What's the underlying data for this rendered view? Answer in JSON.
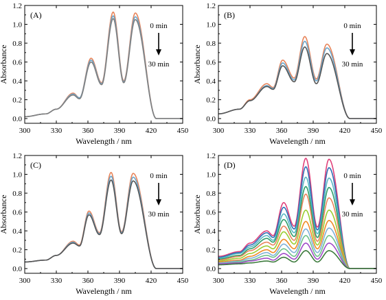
{
  "chart_data": [
    {
      "type": "line",
      "panel_label": "(A)",
      "xlabel": "Wavelength / nm",
      "ylabel": "Absorbance",
      "xlim": [
        300,
        450
      ],
      "ylim": [
        -0.05,
        1.2
      ],
      "xticks": [
        "300",
        "330",
        "360",
        "390",
        "420",
        "450"
      ],
      "yticks": [
        "0.0",
        "0.2",
        "0.4",
        "0.6",
        "0.8",
        "1.0",
        "1.2"
      ],
      "annotation": {
        "start": "0 min",
        "end": "30 min"
      },
      "peaks": [
        {
          "wavelength": 346,
          "absorbance": [
            0.27,
            0.25
          ]
        },
        {
          "wavelength": 363,
          "absorbance": [
            0.64,
            0.6
          ]
        },
        {
          "wavelength": 384,
          "absorbance": [
            1.13,
            1.06
          ]
        },
        {
          "wavelength": 405,
          "absorbance": [
            1.12,
            1.05
          ]
        }
      ],
      "series": [
        {
          "values": [
            0.02,
            0.05,
            0.1,
            0.27,
            0.22,
            0.64,
            0.38,
            1.13,
            0.4,
            1.12,
            0.0
          ]
        },
        {
          "values": [
            0.02,
            0.05,
            0.1,
            0.26,
            0.22,
            0.62,
            0.37,
            1.09,
            0.39,
            1.08,
            0.0
          ]
        },
        {
          "values": [
            0.02,
            0.05,
            0.1,
            0.25,
            0.21,
            0.6,
            0.36,
            1.06,
            0.38,
            1.05,
            0.0
          ]
        }
      ],
      "x": [
        300,
        320,
        330,
        346,
        352,
        363,
        373,
        384,
        394,
        405,
        425
      ],
      "colors": [
        "#e8845a",
        "#6aa4c9",
        "#7f7f7f"
      ],
      "grid": false
    },
    {
      "type": "line",
      "panel_label": "(B)",
      "xlabel": "Wavelength / nm",
      "ylabel": "Absorbance",
      "xlim": [
        300,
        450
      ],
      "ylim": [
        -0.05,
        1.2
      ],
      "xticks": [
        "300",
        "330",
        "360",
        "390",
        "420",
        "450"
      ],
      "yticks": [
        "0.0",
        "0.2",
        "0.4",
        "0.6",
        "0.8",
        "1.0",
        "1.2"
      ],
      "annotation": {
        "start": "0 min",
        "end": "30 min"
      },
      "series": [
        {
          "values": [
            0.05,
            0.1,
            0.2,
            0.37,
            0.33,
            0.62,
            0.43,
            0.87,
            0.42,
            0.79,
            0.0
          ]
        },
        {
          "values": [
            0.05,
            0.1,
            0.19,
            0.35,
            0.32,
            0.59,
            0.41,
            0.82,
            0.4,
            0.75,
            0.0
          ]
        },
        {
          "values": [
            0.05,
            0.1,
            0.19,
            0.34,
            0.31,
            0.56,
            0.39,
            0.76,
            0.37,
            0.69,
            0.0
          ]
        }
      ],
      "x": [
        300,
        320,
        330,
        346,
        352,
        361,
        372,
        382,
        393,
        403,
        425
      ],
      "colors": [
        "#e8845a",
        "#6aa4c9",
        "#555555"
      ],
      "grid": false
    },
    {
      "type": "line",
      "panel_label": "(C)",
      "xlabel": "Wavelength / nm",
      "ylabel": "Absorbance",
      "xlim": [
        300,
        450
      ],
      "ylim": [
        -0.05,
        1.2
      ],
      "xticks": [
        "300",
        "330",
        "360",
        "390",
        "420",
        "450"
      ],
      "yticks": [
        "0.0",
        "0.2",
        "0.4",
        "0.6",
        "0.8",
        "1.0",
        "1.2"
      ],
      "annotation": {
        "start": "0 min",
        "end": "30 min"
      },
      "series": [
        {
          "values": [
            0.07,
            0.09,
            0.14,
            0.29,
            0.25,
            0.61,
            0.38,
            1.02,
            0.39,
            1.01,
            0.0
          ]
        },
        {
          "values": [
            0.07,
            0.09,
            0.14,
            0.28,
            0.24,
            0.59,
            0.37,
            0.98,
            0.38,
            0.97,
            0.0
          ]
        },
        {
          "values": [
            0.07,
            0.09,
            0.14,
            0.27,
            0.24,
            0.57,
            0.36,
            0.94,
            0.37,
            0.93,
            0.0
          ]
        }
      ],
      "x": [
        300,
        320,
        330,
        346,
        352,
        361,
        371,
        382,
        392,
        403,
        425
      ],
      "colors": [
        "#e8845a",
        "#6aa4c9",
        "#555555"
      ],
      "grid": false
    },
    {
      "type": "line",
      "panel_label": "(D)",
      "xlabel": "Wavelength / nm",
      "ylabel": "Absorbance",
      "xlim": [
        300,
        450
      ],
      "ylim": [
        -0.05,
        1.2
      ],
      "xticks": [
        "300",
        "330",
        "360",
        "390",
        "420",
        "450"
      ],
      "yticks": [
        "0.0",
        "0.2",
        "0.4",
        "0.6",
        "0.8",
        "1.0",
        "1.2"
      ],
      "annotation": {
        "start": "0 min",
        "end": "30 min"
      },
      "series": [
        {
          "values": [
            0.13,
            0.18,
            0.27,
            0.4,
            0.35,
            0.7,
            0.45,
            1.17,
            0.44,
            1.16,
            0.0
          ]
        },
        {
          "values": [
            0.12,
            0.17,
            0.25,
            0.38,
            0.33,
            0.65,
            0.42,
            1.08,
            0.41,
            1.07,
            0.0
          ]
        },
        {
          "values": [
            0.11,
            0.16,
            0.23,
            0.35,
            0.3,
            0.58,
            0.38,
            0.97,
            0.37,
            0.96,
            0.0
          ]
        },
        {
          "values": [
            0.1,
            0.14,
            0.21,
            0.32,
            0.28,
            0.52,
            0.34,
            0.87,
            0.33,
            0.86,
            0.0
          ]
        },
        {
          "values": [
            0.09,
            0.13,
            0.19,
            0.28,
            0.25,
            0.45,
            0.3,
            0.79,
            0.29,
            0.75,
            0.0
          ]
        },
        {
          "values": [
            0.08,
            0.11,
            0.16,
            0.24,
            0.21,
            0.39,
            0.26,
            0.62,
            0.25,
            0.62,
            0.0
          ]
        },
        {
          "values": [
            0.07,
            0.09,
            0.13,
            0.2,
            0.17,
            0.31,
            0.21,
            0.5,
            0.21,
            0.51,
            0.0
          ]
        },
        {
          "values": [
            0.06,
            0.08,
            0.11,
            0.17,
            0.14,
            0.26,
            0.17,
            0.42,
            0.17,
            0.43,
            0.0
          ]
        },
        {
          "values": [
            0.05,
            0.07,
            0.09,
            0.14,
            0.12,
            0.21,
            0.13,
            0.35,
            0.13,
            0.35,
            0.0
          ]
        },
        {
          "values": [
            0.05,
            0.06,
            0.08,
            0.11,
            0.09,
            0.16,
            0.1,
            0.27,
            0.1,
            0.27,
            0.0
          ]
        },
        {
          "values": [
            0.04,
            0.05,
            0.06,
            0.08,
            0.07,
            0.12,
            0.07,
            0.19,
            0.07,
            0.19,
            0.0
          ]
        }
      ],
      "x": [
        300,
        320,
        330,
        346,
        352,
        362,
        372,
        383,
        394,
        405,
        425
      ],
      "colors": [
        "#e0407a",
        "#2f6db5",
        "#58b8c4",
        "#2e9e6a",
        "#e8845a",
        "#9acd32",
        "#f08a24",
        "#7fb0d8",
        "#6ec28a",
        "#a04bc8",
        "#3b7a3b"
      ],
      "grid": false
    }
  ]
}
